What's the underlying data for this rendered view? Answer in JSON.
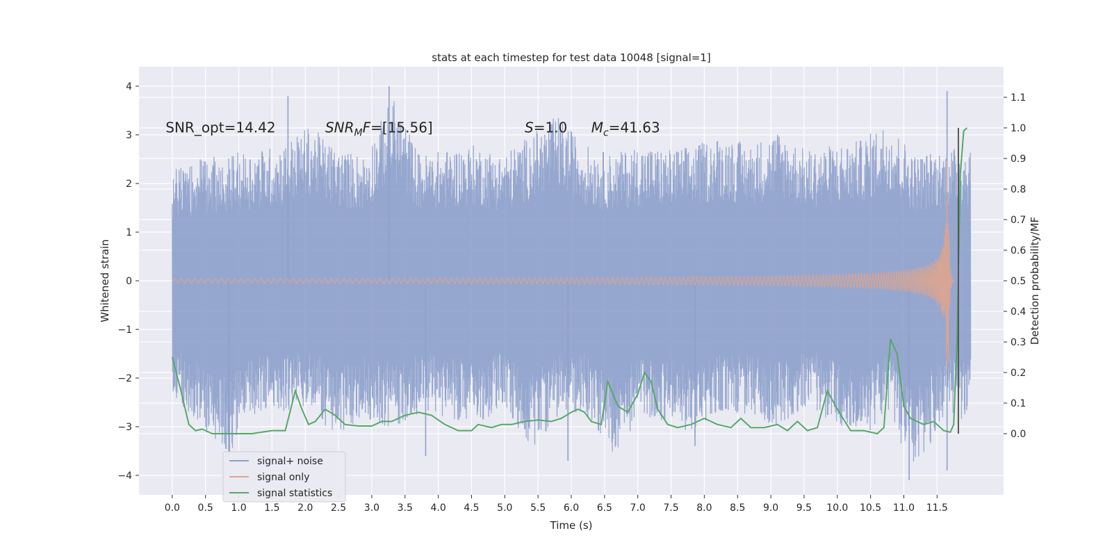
{
  "chart_data": {
    "type": "line",
    "title": "stats at each timestep for test data 10048 [signal=1]",
    "xlabel": "Time (s)",
    "ylabel_left": "Whitened strain",
    "ylabel_right": "Detection probability/MF",
    "xlim": [
      -0.5,
      12.5
    ],
    "ylim_left": [
      -4.4,
      4.4
    ],
    "ylim_right": [
      -0.2,
      1.2
    ],
    "x_ticks": [
      0.0,
      0.5,
      1.0,
      1.5,
      2.0,
      2.5,
      3.0,
      3.5,
      4.0,
      4.5,
      5.0,
      5.5,
      6.0,
      6.5,
      7.0,
      7.5,
      8.0,
      8.5,
      9.0,
      9.5,
      10.0,
      10.5,
      11.0,
      11.5
    ],
    "x_tick_labels": [
      "0.0",
      "0.5",
      "1.0",
      "1.5",
      "2.0",
      "2.5",
      "3.0",
      "3.5",
      "4.0",
      "4.5",
      "5.0",
      "5.5",
      "6.0",
      "6.5",
      "7.0",
      "7.5",
      "8.0",
      "8.5",
      "9.0",
      "9.5",
      "10.0",
      "10.5",
      "11.0",
      "11.5"
    ],
    "y_left_ticks": [
      -4,
      -3,
      -2,
      -1,
      0,
      1,
      2,
      3,
      4
    ],
    "y_left_tick_labels": [
      "−4",
      "−3",
      "−2",
      "−1",
      "0",
      "1",
      "2",
      "3",
      "4"
    ],
    "y_right_ticks": [
      0.0,
      0.1,
      0.2,
      0.3,
      0.4,
      0.5,
      0.6,
      0.7,
      0.8,
      0.9,
      1.0,
      1.1
    ],
    "y_right_tick_labels": [
      "0.0",
      "0.1",
      "0.2",
      "0.3",
      "0.4",
      "0.5",
      "0.6",
      "0.7",
      "0.8",
      "0.9",
      "1.0",
      "1.1"
    ],
    "annotations": [
      {
        "parts": [
          {
            "t": "SNR_opt=14.42",
            "i": false
          }
        ],
        "x": -0.1,
        "y": 3.15
      },
      {
        "parts": [
          {
            "t": "SNR",
            "i": true
          },
          {
            "t": "M",
            "i": true,
            "sub": true
          },
          {
            "t": "F",
            "i": true
          },
          {
            "t": "=[15.56]",
            "i": false
          }
        ],
        "x": 2.3,
        "y": 3.15
      },
      {
        "parts": [
          {
            "t": "S",
            "i": true
          },
          {
            "t": "=1.0",
            "i": false
          }
        ],
        "x": 5.3,
        "y": 3.15
      },
      {
        "parts": [
          {
            "t": "M",
            "i": true
          },
          {
            "t": "c",
            "i": true,
            "sub": true
          },
          {
            "t": "=41.63",
            "i": false
          }
        ],
        "x": 6.3,
        "y": 3.15
      }
    ],
    "legend": {
      "placement": "lower-left",
      "entries": [
        {
          "label": "signal+ noise",
          "color": "#8da0cb"
        },
        {
          "label": "signal only",
          "color": "#e1a58b"
        },
        {
          "label": "signal statistics",
          "color": "#55a868"
        }
      ]
    },
    "series": [
      {
        "name": "signal+ noise",
        "color": "#8da0cb",
        "axis": "left",
        "t_range": [
          0.0,
          12.0
        ],
        "envelope_top": [
          2.3,
          2.5,
          2.6,
          2.7,
          2.8,
          3.2,
          2.7,
          2.6,
          3.8,
          2.6,
          2.7,
          2.8,
          2.6,
          3.0,
          3.4,
          2.8,
          2.6,
          2.8,
          2.7,
          2.8,
          3.0,
          2.8,
          3.1,
          2.7,
          2.8,
          2.9,
          3.3,
          2.6,
          2.7,
          2.8
        ],
        "envelope_bottom": [
          -2.4,
          -3.0,
          -3.6,
          -2.8,
          -2.7,
          -2.6,
          -3.3,
          -2.8,
          -3.1,
          -2.7,
          -2.8,
          -3.0,
          -2.6,
          -3.5,
          -2.8,
          -2.7,
          -3.6,
          -2.8,
          -2.9,
          -3.2,
          -2.7,
          -2.8,
          -3.0,
          -2.6,
          -2.9,
          -3.3,
          -2.7,
          -4.1,
          -2.8,
          -2.9
        ],
        "peak_points": [
          [
            1.74,
            3.8
          ],
          [
            3.26,
            4.0
          ],
          [
            11.65,
            3.9
          ],
          [
            0.85,
            -3.6
          ],
          [
            3.81,
            -3.6
          ],
          [
            11.08,
            -4.1
          ],
          [
            11.65,
            -3.9
          ],
          [
            7.86,
            -3.4
          ],
          [
            5.95,
            -3.7
          ]
        ]
      },
      {
        "name": "signal only",
        "color": "#e1a58b",
        "axis": "left",
        "description_type": "chirp",
        "t_range": [
          0.0,
          11.75
        ],
        "merger_time": 11.66,
        "peak_amplitude": 3.6
      },
      {
        "name": "signal statistics",
        "color": "#55a868",
        "axis": "right",
        "x": [
          0.0,
          0.12,
          0.25,
          0.35,
          0.45,
          0.6,
          0.8,
          1.0,
          1.2,
          1.35,
          1.5,
          1.7,
          1.85,
          1.95,
          2.05,
          2.15,
          2.3,
          2.45,
          2.6,
          2.8,
          3.0,
          3.15,
          3.3,
          3.5,
          3.7,
          3.9,
          4.1,
          4.3,
          4.5,
          4.6,
          4.8,
          4.95,
          5.1,
          5.3,
          5.5,
          5.7,
          5.85,
          6.0,
          6.1,
          6.2,
          6.3,
          6.45,
          6.55,
          6.7,
          6.85,
          7.0,
          7.1,
          7.2,
          7.3,
          7.45,
          7.6,
          7.8,
          8.0,
          8.2,
          8.4,
          8.55,
          8.7,
          8.9,
          9.1,
          9.25,
          9.4,
          9.55,
          9.7,
          9.85,
          10.0,
          10.2,
          10.4,
          10.6,
          10.7,
          10.8,
          10.9,
          11.0,
          11.1,
          11.3,
          11.45,
          11.6,
          11.7,
          11.75,
          11.8,
          11.85,
          11.9,
          11.95
        ],
        "y": [
          0.25,
          0.15,
          0.03,
          0.01,
          0.015,
          0.0,
          0.0,
          0.0,
          0.0,
          0.005,
          0.01,
          0.01,
          0.14,
          0.08,
          0.03,
          0.04,
          0.08,
          0.06,
          0.03,
          0.025,
          0.025,
          0.04,
          0.04,
          0.06,
          0.07,
          0.06,
          0.03,
          0.01,
          0.01,
          0.03,
          0.02,
          0.03,
          0.03,
          0.04,
          0.045,
          0.04,
          0.05,
          0.07,
          0.08,
          0.07,
          0.04,
          0.03,
          0.17,
          0.09,
          0.07,
          0.13,
          0.2,
          0.17,
          0.08,
          0.03,
          0.02,
          0.03,
          0.05,
          0.03,
          0.02,
          0.05,
          0.02,
          0.02,
          0.03,
          0.01,
          0.04,
          0.01,
          0.02,
          0.14,
          0.08,
          0.01,
          0.01,
          0.0,
          0.02,
          0.31,
          0.26,
          0.09,
          0.05,
          0.03,
          0.04,
          0.01,
          0.005,
          0.03,
          0.3,
          0.85,
          0.99,
          1.0
        ]
      }
    ],
    "vertical_line": {
      "x": 11.82,
      "color": "#555555",
      "ymin": -0.0,
      "ymax": 1.0
    }
  }
}
